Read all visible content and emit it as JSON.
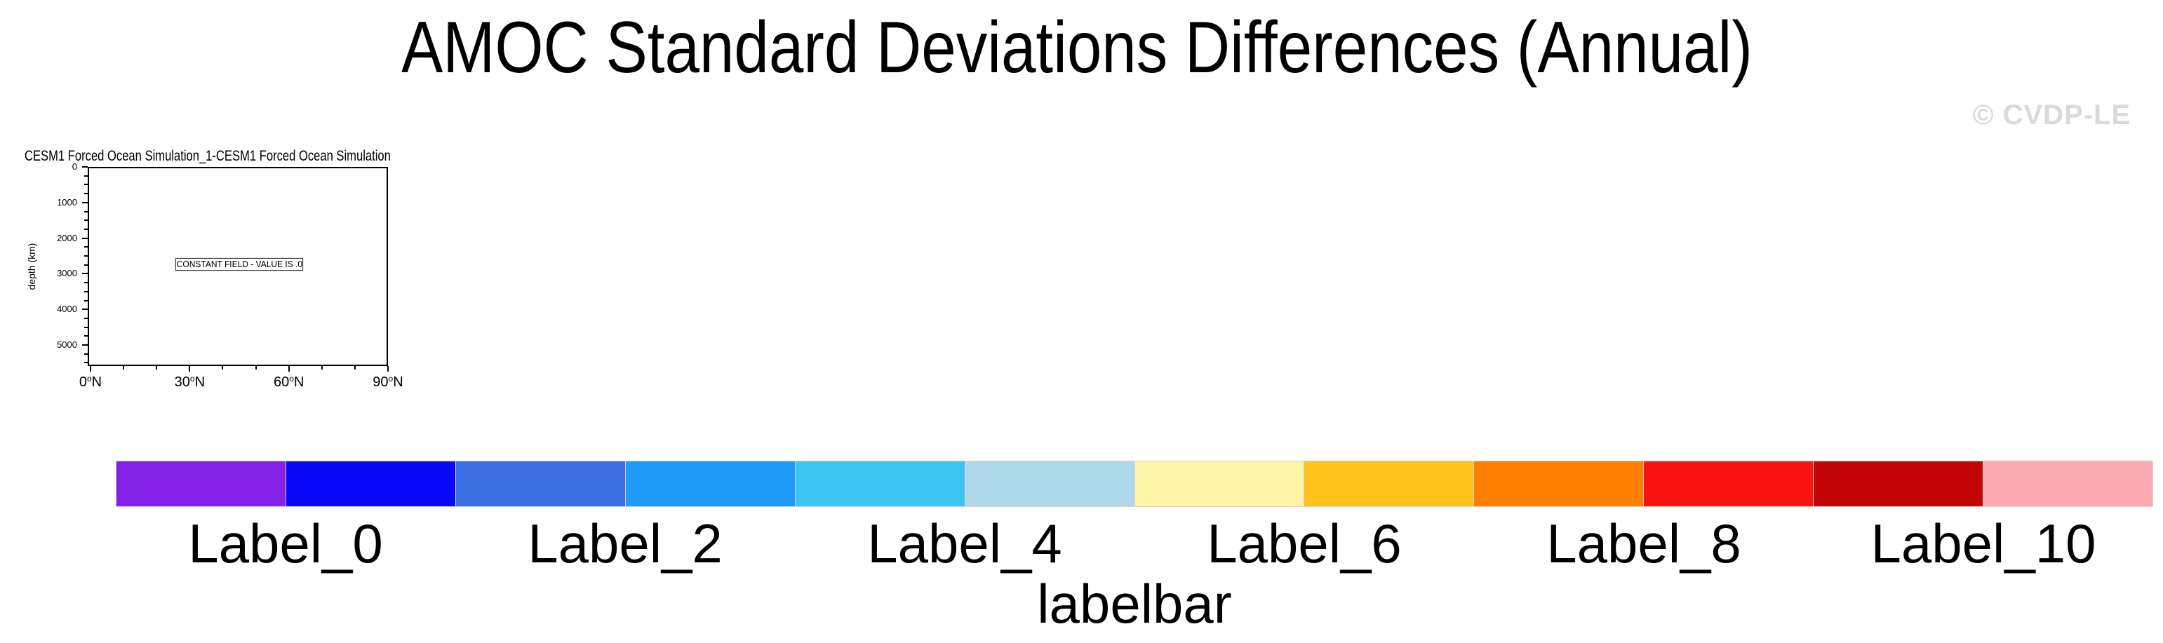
{
  "header": {
    "title": "AMOC Standard Deviations Differences (Annual)",
    "watermark": "© CVDP-LE"
  },
  "panel": {
    "title": "CESM1 Forced Ocean Simulation_1-CESM1 Forced Ocean Simulation",
    "annotation": "CONSTANT FIELD - VALUE IS .0",
    "y_axis": {
      "label": "depth (km)",
      "major_ticks": [
        0,
        1000,
        2000,
        3000,
        4000,
        5000
      ],
      "minor_step": 250,
      "max_value": 5590
    },
    "x_axis": {
      "major_tick_values": [
        0,
        30,
        60,
        90
      ],
      "major_tick_labels": [
        "0",
        "30",
        "60",
        "90"
      ],
      "degree_glyph": "o",
      "suffix": "N",
      "minor_step": 10,
      "max_value": 90
    }
  },
  "labelbar": {
    "caption": "labelbar",
    "labels": [
      "Label_0",
      "Label_2",
      "Label_4",
      "Label_6",
      "Label_8",
      "Label_10"
    ],
    "colors": [
      "#8421E9",
      "#0808F8",
      "#3B6FE0",
      "#1E9AFA",
      "#3CC3F0",
      "#AFD8EA",
      "#FBF5A5",
      "#FEC21B",
      "#FF8000",
      "#FA1410",
      "#C20505",
      "#FDABB2"
    ]
  },
  "chart_data": {
    "type": "heatmap",
    "title": "CESM1 Forced Ocean Simulation_1-CESM1 Forced Ocean Simulation",
    "suptitle": "AMOC Standard Deviations Differences (Annual)",
    "xlabel": "",
    "x_tick_labels": [
      "0°N",
      "30°N",
      "60°N",
      "90°N"
    ],
    "x_range": [
      0,
      90
    ],
    "x_minor_step": 10,
    "ylabel": "depth (km)",
    "y_ticks": [
      0,
      1000,
      2000,
      3000,
      4000,
      5000
    ],
    "y_range_displayed": [
      0,
      5590
    ],
    "y_minor_step": 250,
    "y_axis_inverted": true,
    "grid": false,
    "field": "constant",
    "constant_value": 0.0,
    "annotation": "CONSTANT FIELD - VALUE IS .0",
    "legend_position": "bottom",
    "colorbar": {
      "caption": "labelbar",
      "n_boxes": 12,
      "labels": [
        "Label_0",
        "Label_2",
        "Label_4",
        "Label_6",
        "Label_8",
        "Label_10"
      ],
      "label_boundary_indices": [
        1,
        3,
        5,
        7,
        9,
        11
      ],
      "colors": [
        "#8421E9",
        "#0808F8",
        "#3B6FE0",
        "#1E9AFA",
        "#3CC3F0",
        "#AFD8EA",
        "#FBF5A5",
        "#FEC21B",
        "#FF8000",
        "#FA1410",
        "#C20505",
        "#FDABB2"
      ]
    }
  }
}
